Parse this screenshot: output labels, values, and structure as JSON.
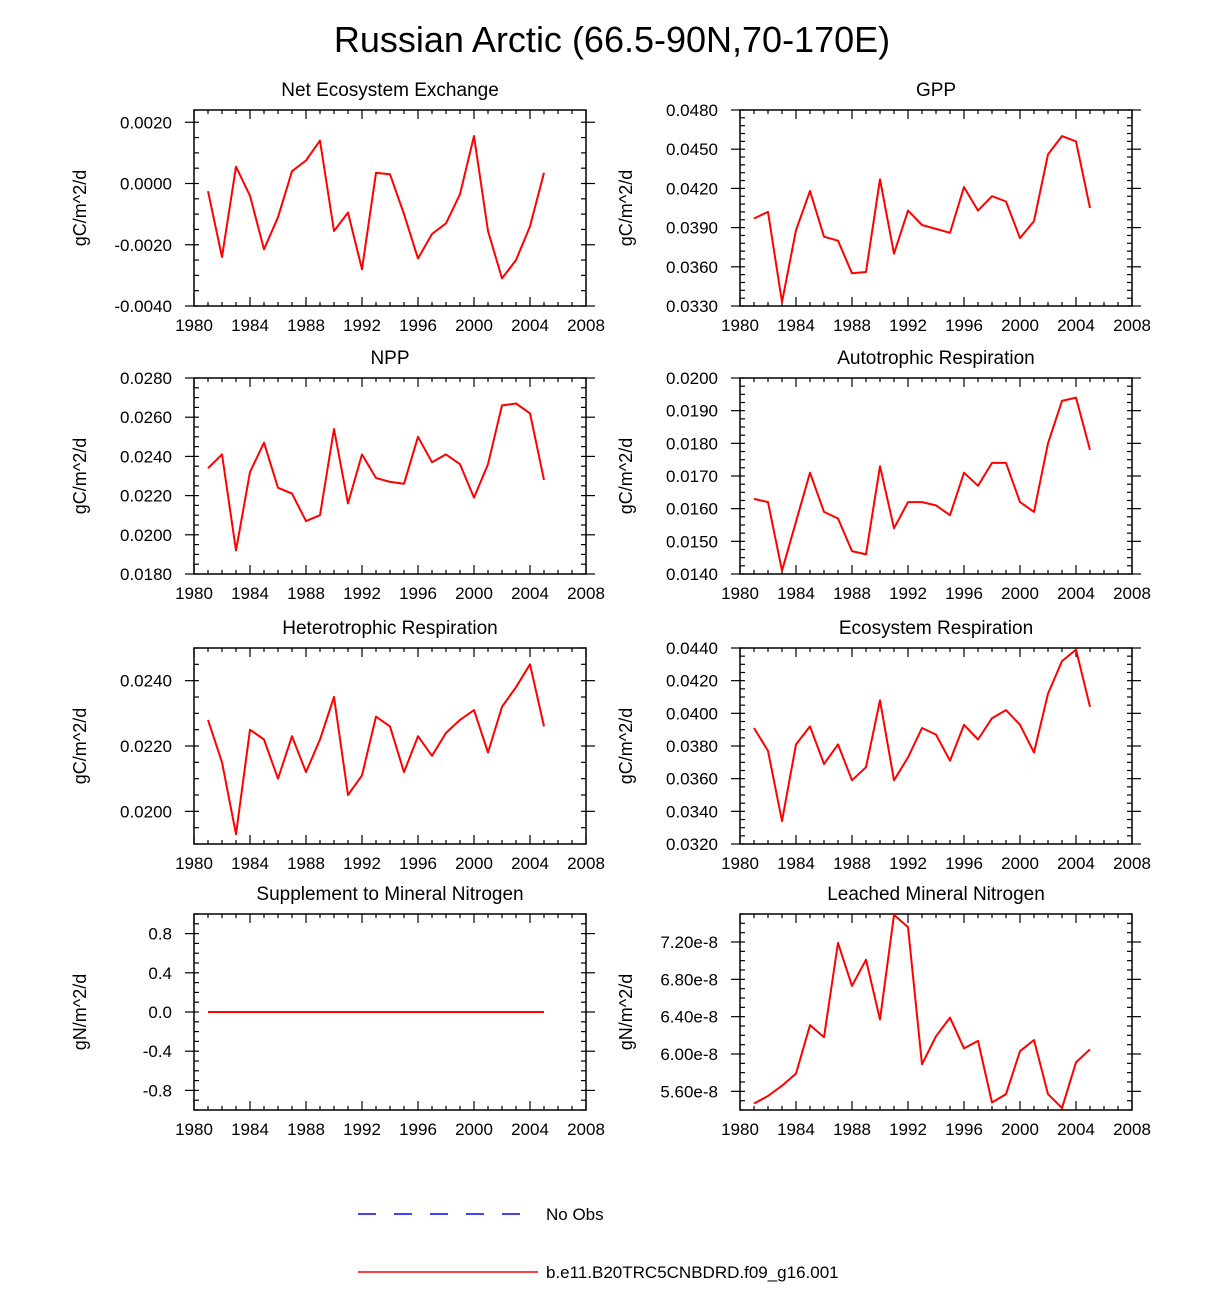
{
  "main_title": "Russian Arctic (66.5-90N,70-170E)",
  "colors": {
    "model": "#ff0000",
    "obs": "#0000ff"
  },
  "legend": [
    {
      "label": "No Obs",
      "style": "dashed",
      "color": "#0000ff"
    },
    {
      "label": "b.e11.B20TRC5CNBDRD.f09_g16.001",
      "style": "solid",
      "color": "#ff0000"
    }
  ],
  "chart_data": [
    {
      "type": "line",
      "title": "Net Ecosystem Exchange",
      "ylabel": "gC/m^2/d",
      "xlim": [
        1980,
        2008
      ],
      "ylim": [
        -0.004,
        0.0024
      ],
      "xticks": [
        1980,
        1984,
        1988,
        1992,
        1996,
        2000,
        2004,
        2008
      ],
      "yticks": [
        -0.004,
        -0.002,
        0.0,
        0.002
      ],
      "ytick_labels": [
        "-0.0040",
        "-0.0020",
        "0.0000",
        "0.0020"
      ],
      "minor_ystep": 0.0005,
      "x": [
        1981,
        1982,
        1983,
        1984,
        1985,
        1986,
        1987,
        1988,
        1989,
        1990,
        1991,
        1992,
        1993,
        1994,
        1995,
        1996,
        1997,
        1998,
        1999,
        2000,
        2001,
        2002,
        2003,
        2004,
        2005
      ],
      "series": [
        {
          "name": "b.e11.B20TRC5CNBDRD.f09_g16.001",
          "values": [
            -0.00025,
            -0.0024,
            0.00055,
            -0.0004,
            -0.00215,
            -0.0011,
            0.0004,
            0.00075,
            0.0014,
            -0.00155,
            -0.00095,
            -0.0028,
            0.00035,
            0.0003,
            -0.001,
            -0.00245,
            -0.00165,
            -0.0013,
            -0.00035,
            0.00155,
            -0.00155,
            -0.0031,
            -0.0025,
            -0.0014,
            0.00035
          ]
        }
      ]
    },
    {
      "type": "line",
      "title": "GPP",
      "ylabel": "gC/m^2/d",
      "xlim": [
        1980,
        2008
      ],
      "ylim": [
        0.033,
        0.048
      ],
      "xticks": [
        1980,
        1984,
        1988,
        1992,
        1996,
        2000,
        2004,
        2008
      ],
      "yticks": [
        0.033,
        0.036,
        0.039,
        0.042,
        0.045,
        0.048
      ],
      "ytick_labels": [
        "0.0330",
        "0.0360",
        "0.0390",
        "0.0420",
        "0.0450",
        "0.0480"
      ],
      "minor_ystep": 0.0006,
      "x": [
        1981,
        1982,
        1983,
        1984,
        1985,
        1986,
        1987,
        1988,
        1989,
        1990,
        1991,
        1992,
        1993,
        1994,
        1995,
        1996,
        1997,
        1998,
        1999,
        2000,
        2001,
        2002,
        2003,
        2004,
        2005
      ],
      "series": [
        {
          "name": "b.e11.B20TRC5CNBDRD.f09_g16.001",
          "values": [
            0.0397,
            0.0402,
            0.0333,
            0.0388,
            0.0418,
            0.0383,
            0.038,
            0.0355,
            0.0356,
            0.0427,
            0.037,
            0.0403,
            0.0392,
            0.0389,
            0.0386,
            0.0421,
            0.0403,
            0.0414,
            0.041,
            0.0382,
            0.0395,
            0.0446,
            0.046,
            0.0456,
            0.0405
          ]
        }
      ]
    },
    {
      "type": "line",
      "title": "NPP",
      "ylabel": "gC/m^2/d",
      "xlim": [
        1980,
        2008
      ],
      "ylim": [
        0.018,
        0.028
      ],
      "xticks": [
        1980,
        1984,
        1988,
        1992,
        1996,
        2000,
        2004,
        2008
      ],
      "yticks": [
        0.018,
        0.02,
        0.022,
        0.024,
        0.026,
        0.028
      ],
      "ytick_labels": [
        "0.0180",
        "0.0200",
        "0.0220",
        "0.0240",
        "0.0260",
        "0.0280"
      ],
      "minor_ystep": 0.0005,
      "x": [
        1981,
        1982,
        1983,
        1984,
        1985,
        1986,
        1987,
        1988,
        1989,
        1990,
        1991,
        1992,
        1993,
        1994,
        1995,
        1996,
        1997,
        1998,
        1999,
        2000,
        2001,
        2002,
        2003,
        2004,
        2005
      ],
      "series": [
        {
          "name": "b.e11.B20TRC5CNBDRD.f09_g16.001",
          "values": [
            0.0234,
            0.0241,
            0.0192,
            0.0232,
            0.0247,
            0.0224,
            0.0221,
            0.0207,
            0.021,
            0.0254,
            0.0216,
            0.0241,
            0.0229,
            0.0227,
            0.0226,
            0.025,
            0.0237,
            0.0241,
            0.0236,
            0.0219,
            0.0236,
            0.0266,
            0.0267,
            0.0262,
            0.0228
          ]
        }
      ]
    },
    {
      "type": "line",
      "title": "Autotrophic Respiration",
      "ylabel": "gC/m^2/d",
      "xlim": [
        1980,
        2008
      ],
      "ylim": [
        0.014,
        0.02
      ],
      "xticks": [
        1980,
        1984,
        1988,
        1992,
        1996,
        2000,
        2004,
        2008
      ],
      "yticks": [
        0.014,
        0.015,
        0.016,
        0.017,
        0.018,
        0.019,
        0.02
      ],
      "ytick_labels": [
        "0.0140",
        "0.0150",
        "0.0160",
        "0.0170",
        "0.0180",
        "0.0190",
        "0.0200"
      ],
      "minor_ystep": 0.00025,
      "x": [
        1981,
        1982,
        1983,
        1984,
        1985,
        1986,
        1987,
        1988,
        1989,
        1990,
        1991,
        1992,
        1993,
        1994,
        1995,
        1996,
        1997,
        1998,
        1999,
        2000,
        2001,
        2002,
        2003,
        2004,
        2005
      ],
      "series": [
        {
          "name": "b.e11.B20TRC5CNBDRD.f09_g16.001",
          "values": [
            0.0163,
            0.0162,
            0.0141,
            0.0156,
            0.0171,
            0.0159,
            0.0157,
            0.0147,
            0.0146,
            0.0173,
            0.0154,
            0.0162,
            0.0162,
            0.0161,
            0.0158,
            0.0171,
            0.0167,
            0.0174,
            0.0174,
            0.0162,
            0.0159,
            0.018,
            0.0193,
            0.0194,
            0.0178
          ]
        }
      ]
    },
    {
      "type": "line",
      "title": "Heterotrophic Respiration",
      "ylabel": "gC/m^2/d",
      "xlim": [
        1980,
        2008
      ],
      "ylim": [
        0.019,
        0.025
      ],
      "xticks": [
        1980,
        1984,
        1988,
        1992,
        1996,
        2000,
        2004,
        2008
      ],
      "yticks": [
        0.02,
        0.022,
        0.024
      ],
      "ytick_labels": [
        "0.0200",
        "0.0220",
        "0.0240"
      ],
      "minor_ystep": 0.0005,
      "x": [
        1981,
        1982,
        1983,
        1984,
        1985,
        1986,
        1987,
        1988,
        1989,
        1990,
        1991,
        1992,
        1993,
        1994,
        1995,
        1996,
        1997,
        1998,
        1999,
        2000,
        2001,
        2002,
        2003,
        2004,
        2005
      ],
      "series": [
        {
          "name": "b.e11.B20TRC5CNBDRD.f09_g16.001",
          "values": [
            0.0228,
            0.0215,
            0.0193,
            0.0225,
            0.0222,
            0.021,
            0.0223,
            0.0212,
            0.0222,
            0.0235,
            0.0205,
            0.0211,
            0.0229,
            0.0226,
            0.0212,
            0.0223,
            0.0217,
            0.0224,
            0.0228,
            0.0231,
            0.0218,
            0.0232,
            0.0238,
            0.0245,
            0.0226
          ]
        }
      ]
    },
    {
      "type": "line",
      "title": "Ecosystem Respiration",
      "ylabel": "gC/m^2/d",
      "xlim": [
        1980,
        2008
      ],
      "ylim": [
        0.032,
        0.044
      ],
      "xticks": [
        1980,
        1984,
        1988,
        1992,
        1996,
        2000,
        2004,
        2008
      ],
      "yticks": [
        0.032,
        0.034,
        0.036,
        0.038,
        0.04,
        0.042,
        0.044
      ],
      "ytick_labels": [
        "0.0320",
        "0.0340",
        "0.0360",
        "0.0380",
        "0.0400",
        "0.0420",
        "0.0440"
      ],
      "minor_ystep": 0.0005,
      "x": [
        1981,
        1982,
        1983,
        1984,
        1985,
        1986,
        1987,
        1988,
        1989,
        1990,
        1991,
        1992,
        1993,
        1994,
        1995,
        1996,
        1997,
        1998,
        1999,
        2000,
        2001,
        2002,
        2003,
        2004,
        2005
      ],
      "series": [
        {
          "name": "b.e11.B20TRC5CNBDRD.f09_g16.001",
          "values": [
            0.0391,
            0.0377,
            0.0334,
            0.0381,
            0.0392,
            0.0369,
            0.0381,
            0.0359,
            0.0367,
            0.0408,
            0.0359,
            0.0373,
            0.0391,
            0.0387,
            0.0371,
            0.0393,
            0.0384,
            0.0397,
            0.0402,
            0.0393,
            0.0376,
            0.0412,
            0.0432,
            0.0439,
            0.0404
          ]
        }
      ]
    },
    {
      "type": "line",
      "title": "Supplement to Mineral Nitrogen",
      "ylabel": "gN/m^2/d",
      "xlim": [
        1980,
        2008
      ],
      "ylim": [
        -1.0,
        1.0
      ],
      "xticks": [
        1980,
        1984,
        1988,
        1992,
        1996,
        2000,
        2004,
        2008
      ],
      "yticks": [
        -0.8,
        -0.4,
        0.0,
        0.4,
        0.8
      ],
      "ytick_labels": [
        "-0.8",
        "-0.4",
        "0.0",
        "0.4",
        "0.8"
      ],
      "minor_ystep": 0.1,
      "x": [
        1981,
        1982,
        1983,
        1984,
        1985,
        1986,
        1987,
        1988,
        1989,
        1990,
        1991,
        1992,
        1993,
        1994,
        1995,
        1996,
        1997,
        1998,
        1999,
        2000,
        2001,
        2002,
        2003,
        2004,
        2005
      ],
      "series": [
        {
          "name": "b.e11.B20TRC5CNBDRD.f09_g16.001",
          "values": [
            0,
            0,
            0,
            0,
            0,
            0,
            0,
            0,
            0,
            0,
            0,
            0,
            0,
            0,
            0,
            0,
            0,
            0,
            0,
            0,
            0,
            0,
            0,
            0,
            0
          ]
        }
      ]
    },
    {
      "type": "line",
      "title": "Leached Mineral Nitrogen",
      "ylabel": "gN/m^2/d",
      "xlim": [
        1980,
        2008
      ],
      "ylim": [
        5.4e-08,
        7.5e-08
      ],
      "xticks": [
        1980,
        1984,
        1988,
        1992,
        1996,
        2000,
        2004,
        2008
      ],
      "yticks": [
        5.6e-08,
        6e-08,
        6.4e-08,
        6.8e-08,
        7.2e-08
      ],
      "ytick_labels": [
        "5.60e-8",
        "6.00e-8",
        "6.40e-8",
        "6.80e-8",
        "7.20e-8"
      ],
      "minor_ystep": 1e-09,
      "x": [
        1981,
        1982,
        1983,
        1984,
        1985,
        1986,
        1987,
        1988,
        1989,
        1990,
        1991,
        1992,
        1993,
        1994,
        1995,
        1996,
        1997,
        1998,
        1999,
        2000,
        2001,
        2002,
        2003,
        2004,
        2005
      ],
      "series": [
        {
          "name": "b.e11.B20TRC5CNBDRD.f09_g16.001",
          "values": [
            5.47e-08,
            5.55e-08,
            5.66e-08,
            5.79e-08,
            6.31e-08,
            6.18e-08,
            7.19e-08,
            6.73e-08,
            7.01e-08,
            6.37e-08,
            7.49e-08,
            7.36e-08,
            5.89e-08,
            6.19e-08,
            6.39e-08,
            6.06e-08,
            6.14e-08,
            5.48e-08,
            5.57e-08,
            6.03e-08,
            6.15e-08,
            5.57e-08,
            5.42e-08,
            5.91e-08,
            6.05e-08
          ]
        }
      ]
    }
  ]
}
